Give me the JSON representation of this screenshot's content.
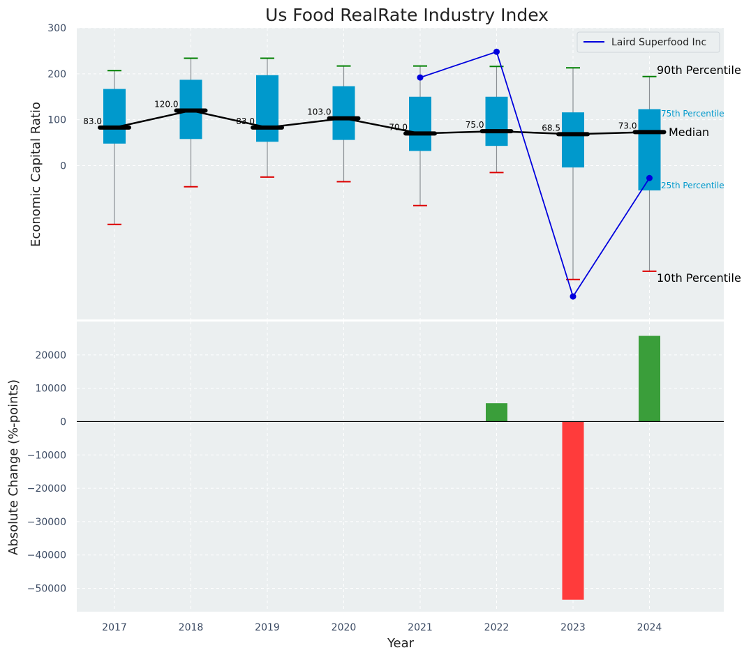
{
  "chart_data": [
    {
      "type": "box",
      "title": "Us Food RealRate Industry Index",
      "ylabel": "Economic Capital Ratio",
      "xlabel": "",
      "categories": [
        "2017",
        "2018",
        "2019",
        "2020",
        "2021",
        "2022",
        "2023",
        "2024"
      ],
      "ylim": [
        -335,
        300
      ],
      "yticks": [
        "300",
        "200",
        "100",
        "0"
      ],
      "grid": true,
      "percentiles": {
        "p10": [
          -128,
          -46,
          -25,
          -35,
          -87,
          -15,
          -248,
          -230
        ],
        "p25": [
          48,
          58,
          52,
          56,
          32,
          43,
          -4,
          -54
        ],
        "median": [
          83,
          120,
          83,
          103,
          70,
          75,
          68.5,
          73
        ],
        "p75": [
          167,
          187,
          197,
          173,
          150,
          150,
          116,
          123
        ],
        "p90": [
          207,
          234,
          234,
          217,
          217,
          216,
          213,
          194
        ]
      },
      "median_labels": [
        "83.0",
        "120.0",
        "83.0",
        "103.0",
        "70.0",
        "75.0",
        "68.5",
        "73.0"
      ],
      "series": [
        {
          "name": "Laird Superfood Inc",
          "color": "#0000dd",
          "x": [
            "2021",
            "2022",
            "2023",
            "2024"
          ],
          "values": [
            192,
            248,
            -285,
            -27
          ]
        }
      ],
      "annotations": {
        "p90": "90th Percentile",
        "p75": "75th Percentile",
        "median": "Median",
        "p25": "25th Percentile",
        "p10": "10th Percentile"
      },
      "legend": "top-right",
      "colors": {
        "box": "#0099cc",
        "whisker_top": "#008000",
        "whisker_bottom": "#dd0000",
        "median_line": "#000000",
        "background": "#ebeff0"
      }
    },
    {
      "type": "bar",
      "ylabel": "Absolute Change (%-points)",
      "xlabel": "Year",
      "categories": [
        "2017",
        "2018",
        "2019",
        "2020",
        "2021",
        "2022",
        "2023",
        "2024"
      ],
      "values": [
        0,
        0,
        0,
        0,
        0,
        5500,
        -53400,
        25700
      ],
      "ylim": [
        -57000,
        30000
      ],
      "yticks": [
        "20000",
        "10000",
        "0",
        "−10000",
        "−20000",
        "−30000",
        "−40000",
        "−50000"
      ],
      "grid": true,
      "colors": {
        "positive": "#3a9e3a",
        "negative": "#ff3b3b"
      }
    }
  ]
}
